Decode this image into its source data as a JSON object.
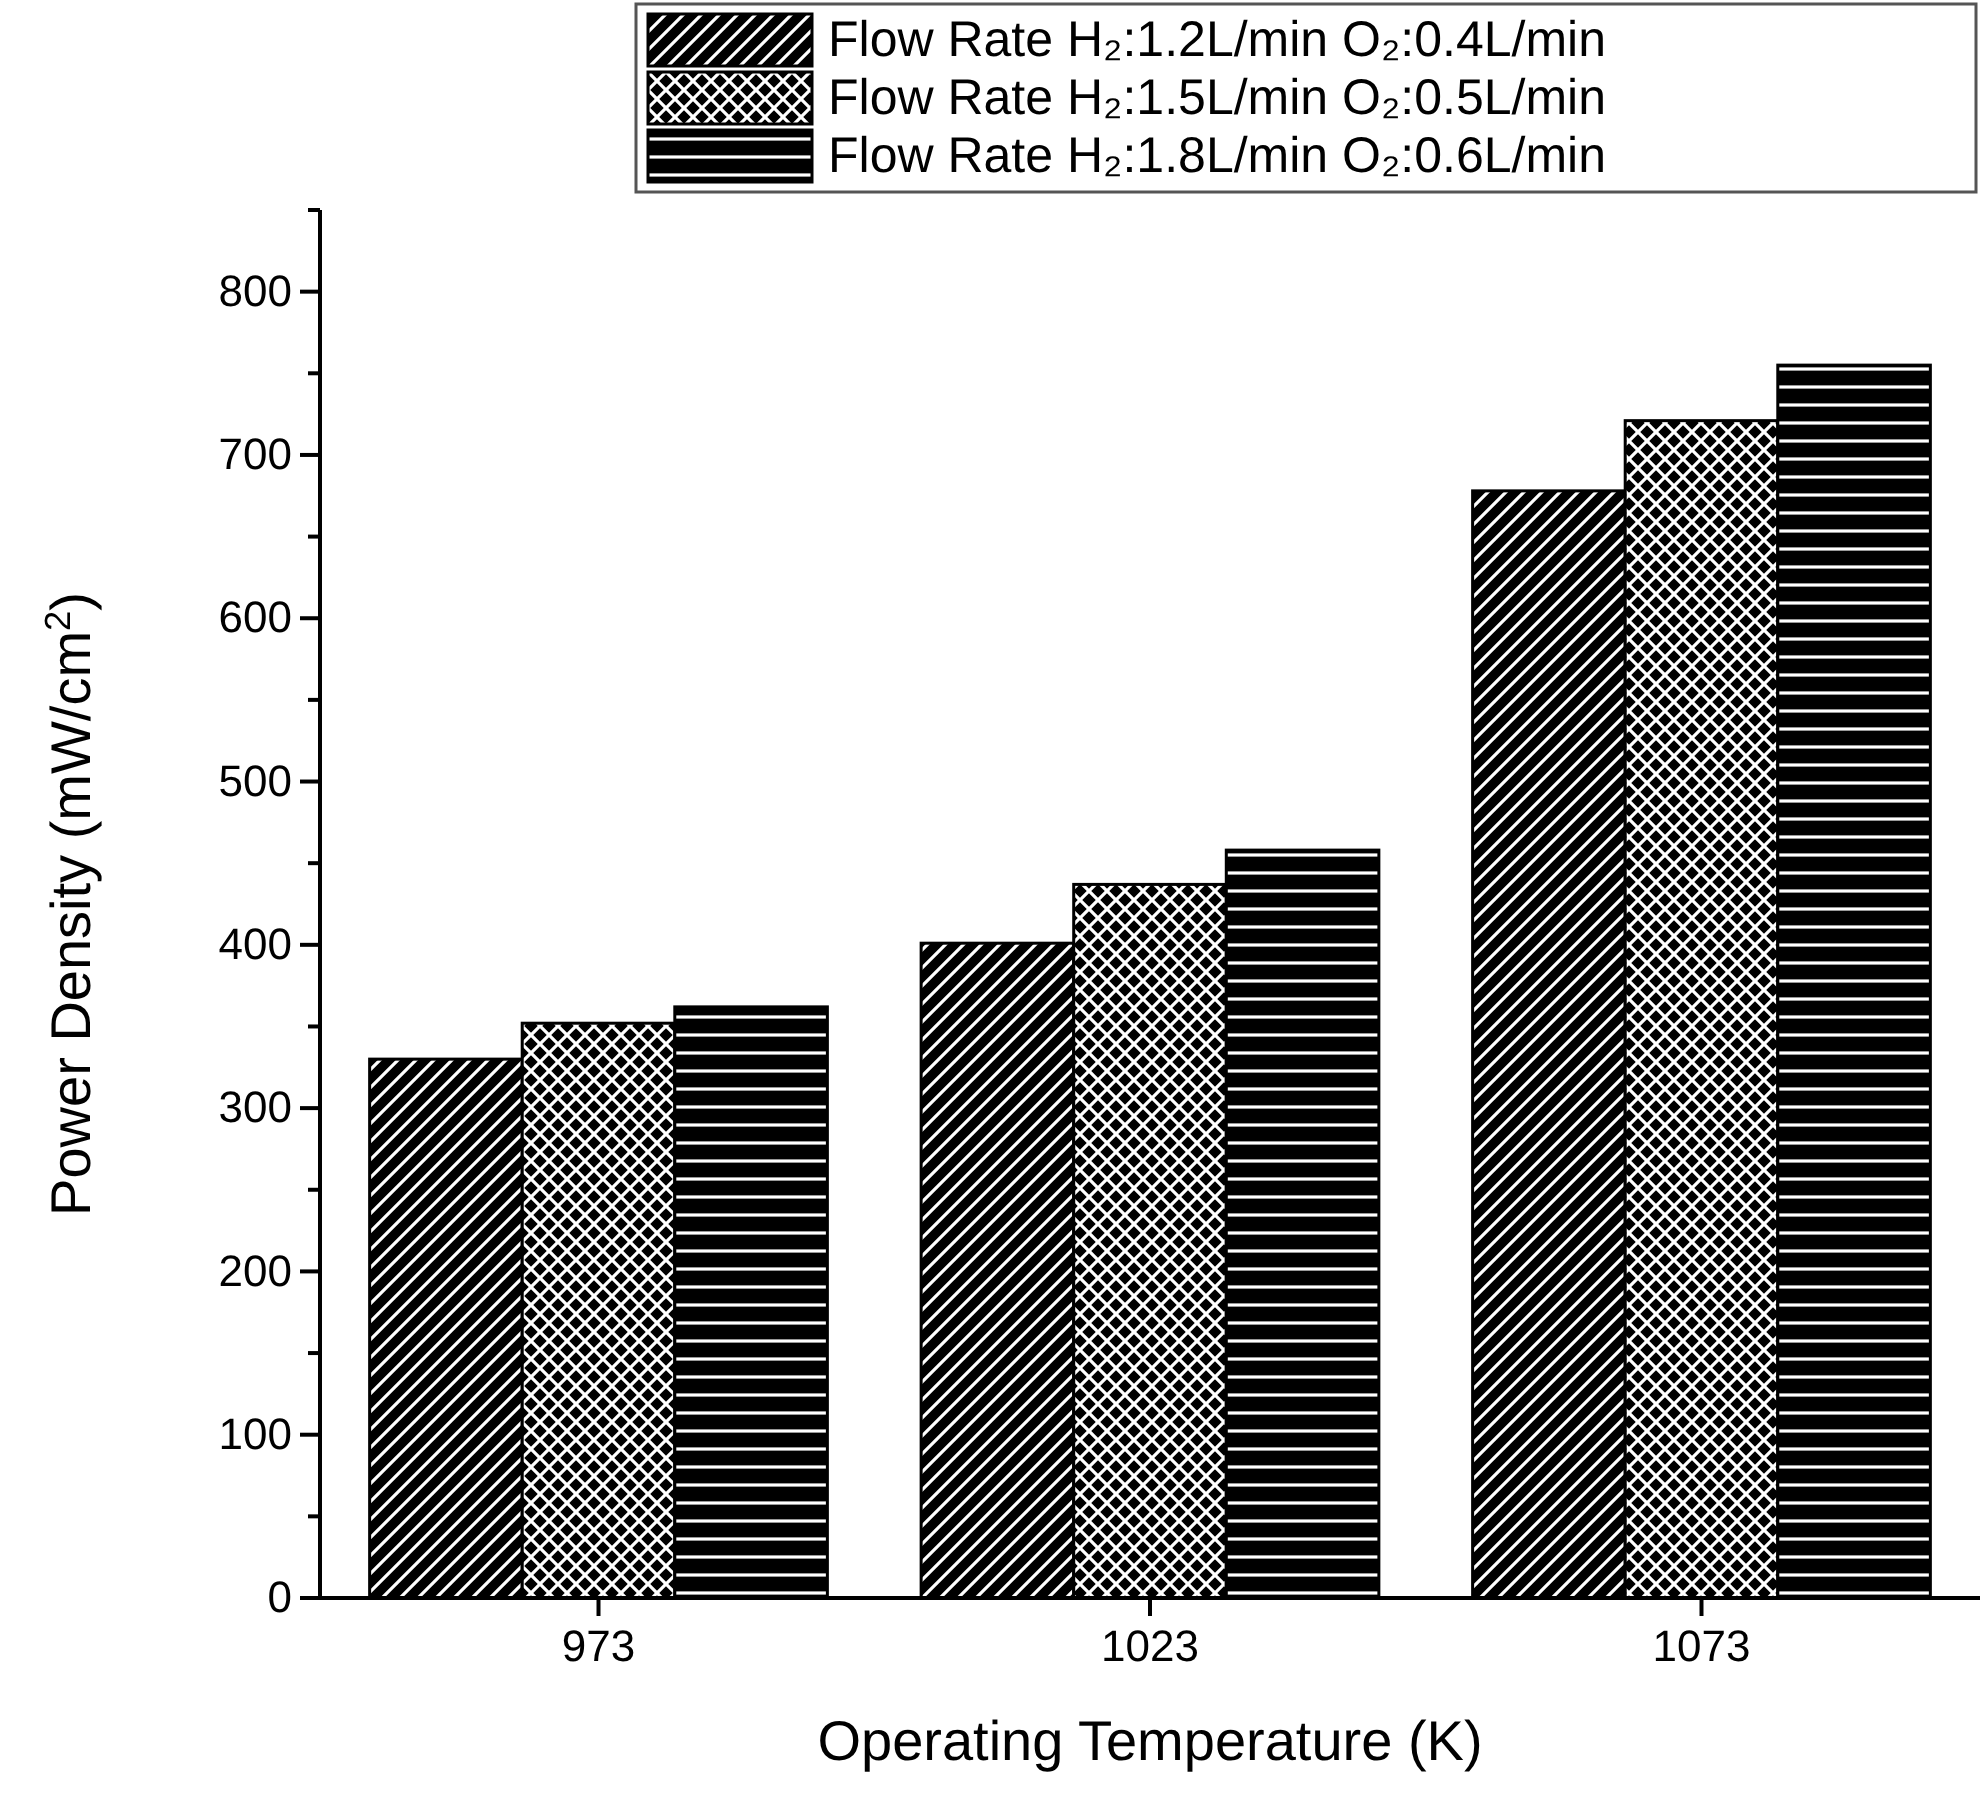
{
  "chart_data": {
    "type": "bar",
    "xlabel": "Operating Temperature (K)",
    "ylabel": "Power Density (mW/cm$^{2}$)",
    "categories": [
      "973",
      "1023",
      "1073"
    ],
    "series": [
      {
        "name": "Flow Rate H₂:1.2L/min O₂:0.4L/min",
        "color": "#000000",
        "values": [
          330,
          401,
          678
        ]
      },
      {
        "name": "Flow Rate H₂:1.5L/min O₂:0.5L/min",
        "color": "#000000",
        "values": [
          352,
          437,
          721
        ]
      },
      {
        "name": "Flow Rate H₂:1.8L/min O₂:0.6L/min",
        "color": "#000000",
        "values": [
          362,
          458,
          755
        ]
      }
    ],
    "ylim": [
      0,
      850
    ],
    "yticks": [
      0,
      {
        "value": 50,
        "label": null
      },
      100,
      {
        "value": 150,
        "label": null
      },
      200,
      {
        "value": 250,
        "label": null
      },
      300,
      {
        "value": 350,
        "label": null
      },
      400,
      {
        "value": 450,
        "label": null
      },
      500,
      {
        "value": 550,
        "label": null
      },
      600,
      {
        "value": 650,
        "label": null
      },
      700,
      {
        "value": 750,
        "label": null
      },
      800,
      {
        "value": 850,
        "label": null
      }
    ],
    "legend": "top right",
    "grid": false
  }
}
